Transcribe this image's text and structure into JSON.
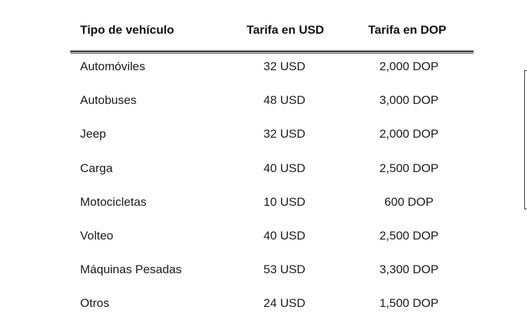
{
  "table": {
    "headers": {
      "vehicle_type": "Tipo de vehículo",
      "usd": "Tarifa en USD",
      "dop": "Tarifa en DOP"
    },
    "rows": [
      {
        "vehicle_type": "Automóviles",
        "usd": "32  USD",
        "dop": "2,000  DOP"
      },
      {
        "vehicle_type": "Autobuses",
        "usd": "48  USD",
        "dop": "3,000  DOP"
      },
      {
        "vehicle_type": "Jeep",
        "usd": "32  USD",
        "dop": "2,000  DOP"
      },
      {
        "vehicle_type": "Carga",
        "usd": "40  USD",
        "dop": "2,500  DOP"
      },
      {
        "vehicle_type": "Motocicletas",
        "usd": "10  USD",
        "dop": "600  DOP"
      },
      {
        "vehicle_type": "Volteo",
        "usd": "40  USD",
        "dop": "2,500  DOP"
      },
      {
        "vehicle_type": "Máquinas Pesadas",
        "usd": "53  USD",
        "dop": "3,300  DOP"
      },
      {
        "vehicle_type": "Otros",
        "usd": "24  USD",
        "dop": "1,500  DOP"
      }
    ]
  }
}
